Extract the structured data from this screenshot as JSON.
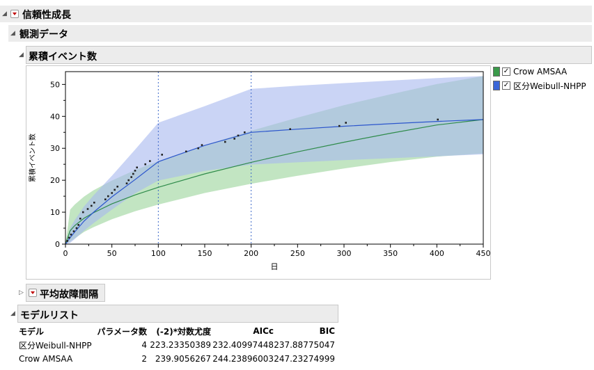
{
  "report": {
    "title": "信頼性成長",
    "observed_title": "観測データ",
    "cumulative_title": "累積イベント数",
    "mtbf_title": "平均故障間隔",
    "model_list_title": "モデルリスト"
  },
  "legend": [
    {
      "label": "Crow AMSAA",
      "color": "#3a9a4a",
      "checked": "✓"
    },
    {
      "label": "区分Weibull-NHPP",
      "color": "#3a66d8",
      "checked": "✓"
    }
  ],
  "model_table": {
    "headers": [
      "モデル",
      "パラメータ数",
      "(-2)*対数尤度",
      "AICc",
      "BIC"
    ],
    "rows": [
      [
        "区分Weibull-NHPP",
        "4",
        "223.23350389",
        "232.40997448",
        "237.88775047"
      ],
      [
        "Crow AMSAA",
        "2",
        "239.9056267",
        "244.23896003",
        "247.23274999"
      ]
    ]
  },
  "chart_data": {
    "type": "scatter",
    "xlabel": "日",
    "ylabel": "累積イベント数",
    "xlim": [
      0,
      450
    ],
    "ylim": [
      0,
      54
    ],
    "xticks": [
      0,
      50,
      100,
      150,
      200,
      250,
      300,
      350,
      400,
      450
    ],
    "yticks": [
      0,
      10,
      20,
      30,
      40,
      50
    ],
    "change_points": [
      100,
      200
    ],
    "points": [
      [
        2,
        1
      ],
      [
        4,
        2
      ],
      [
        6,
        3
      ],
      [
        9,
        4
      ],
      [
        12,
        5
      ],
      [
        14,
        6
      ],
      [
        16,
        8
      ],
      [
        19,
        10
      ],
      [
        24,
        11
      ],
      [
        28,
        12
      ],
      [
        31,
        13
      ],
      [
        43,
        14
      ],
      [
        46,
        15
      ],
      [
        50,
        16
      ],
      [
        53,
        17
      ],
      [
        56,
        18
      ],
      [
        66,
        19
      ],
      [
        68,
        20
      ],
      [
        71,
        21
      ],
      [
        73,
        22
      ],
      [
        75,
        23
      ],
      [
        77,
        24
      ],
      [
        86,
        25
      ],
      [
        91,
        26
      ],
      [
        104,
        28
      ],
      [
        130,
        29
      ],
      [
        143,
        30
      ],
      [
        147,
        31
      ],
      [
        172,
        32
      ],
      [
        182,
        33
      ],
      [
        186,
        34
      ],
      [
        193,
        35
      ],
      [
        242,
        36
      ],
      [
        295,
        37
      ],
      [
        302,
        38
      ],
      [
        401,
        39
      ]
    ],
    "series": [
      {
        "name": "Crow AMSAA",
        "color": "#2e8b4a",
        "band_color": "#8fd08f",
        "x": [
          0,
          5,
          10,
          20,
          30,
          50,
          75,
          100,
          150,
          200,
          250,
          300,
          350,
          400,
          450
        ],
        "y": [
          0,
          4.2,
          5.8,
          8.1,
          9.8,
          12.6,
          15.4,
          17.8,
          22.0,
          25.6,
          28.9,
          31.9,
          34.7,
          37.3,
          39.0
        ],
        "lower": [
          0,
          0.8,
          1.8,
          3.8,
          5.3,
          7.8,
          10.3,
          12.4,
          16.0,
          18.9,
          21.4,
          23.7,
          25.7,
          27.4,
          28.4
        ],
        "upper": [
          0,
          10.8,
          12.4,
          14.9,
          16.8,
          19.9,
          23.2,
          26.0,
          31.0,
          35.5,
          39.6,
          43.5,
          46.9,
          50.1,
          52.6
        ]
      },
      {
        "name": "区分Weibull-NHPP",
        "color": "#2b55cc",
        "band_color": "#a6b8ee",
        "x": [
          0,
          5,
          10,
          20,
          30,
          50,
          75,
          100,
          150,
          200,
          250,
          300,
          350,
          400,
          450
        ],
        "y": [
          0,
          2.0,
          3.8,
          7.2,
          9.9,
          14.8,
          20.2,
          25.8,
          30.9,
          35.0,
          36.0,
          36.9,
          37.7,
          38.4,
          39.0
        ],
        "lower": [
          0,
          0.4,
          1.6,
          4.2,
          6.5,
          10.8,
          15.9,
          19.9,
          22.9,
          24.9,
          25.6,
          26.3,
          26.9,
          27.5,
          28.1
        ],
        "upper": [
          0,
          5.0,
          7.5,
          11.8,
          15.2,
          21.4,
          29.6,
          38.0,
          43.2,
          48.6,
          49.6,
          50.4,
          51.2,
          52.0,
          52.6
        ]
      }
    ]
  }
}
